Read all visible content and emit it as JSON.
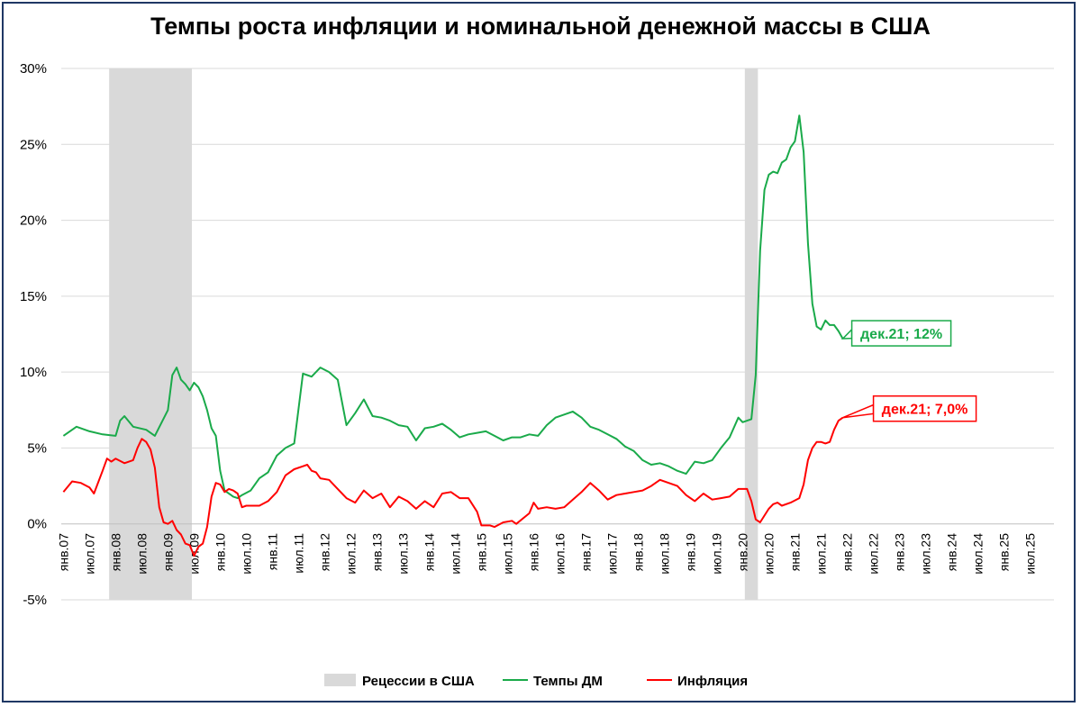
{
  "chart_data": {
    "type": "line",
    "title": "Темпы роста инфляции и номинальной денежной массы в США",
    "y_ticks": [
      "30%",
      "25%",
      "20%",
      "15%",
      "10%",
      "5%",
      "0%",
      "-5%"
    ],
    "ylim": [
      -5,
      30
    ],
    "grid": true,
    "x_start": "янв.07",
    "x_end": "дек.25",
    "x_tick_labels": [
      "янв.07",
      "июл.07",
      "янв.08",
      "июл.08",
      "янв.09",
      "июл.09",
      "янв.10",
      "июл.10",
      "янв.11",
      "июл.11",
      "янв.12",
      "июл.12",
      "янв.13",
      "июл.13",
      "янв.14",
      "июл.14",
      "янв.15",
      "июл.15",
      "янв.16",
      "июл.16",
      "янв.17",
      "июл.17",
      "янв.18",
      "июл.18",
      "янв.19",
      "июл.19",
      "янв.20",
      "июл.20",
      "янв.21",
      "июл.21",
      "янв.22",
      "июл.22",
      "янв.23",
      "июл.23",
      "янв.24",
      "июл.24",
      "янв.25",
      "июл.25"
    ],
    "recessions": [
      {
        "start": "дек.07",
        "end": "июн.09"
      },
      {
        "start": "фев.20",
        "end": "апр.20"
      }
    ],
    "series": [
      {
        "name": "Темпы ДМ",
        "color": "#1aaa4a",
        "points": [
          [
            "янв.07",
            5.8
          ],
          [
            "апр.07",
            6.4
          ],
          [
            "июл.07",
            6.1
          ],
          [
            "окт.07",
            5.9
          ],
          [
            "янв.08",
            5.8
          ],
          [
            "фев.08",
            6.8
          ],
          [
            "мар.08",
            7.1
          ],
          [
            "май.08",
            6.4
          ],
          [
            "авг.08",
            6.2
          ],
          [
            "окт.08",
            5.8
          ],
          [
            "янв.09",
            7.5
          ],
          [
            "фев.09",
            9.8
          ],
          [
            "мар.09",
            10.3
          ],
          [
            "апр.09",
            9.5
          ],
          [
            "май.09",
            9.2
          ],
          [
            "июн.09",
            8.8
          ],
          [
            "июл.09",
            9.3
          ],
          [
            "авг.09",
            9.0
          ],
          [
            "сен.09",
            8.4
          ],
          [
            "окт.09",
            7.5
          ],
          [
            "ноя.09",
            6.3
          ],
          [
            "дек.09",
            5.8
          ],
          [
            "янв.10",
            3.5
          ],
          [
            "фев.10",
            2.2
          ],
          [
            "мар.10",
            2.0
          ],
          [
            "апр.10",
            1.8
          ],
          [
            "май.10",
            1.7
          ],
          [
            "июн.10",
            1.9
          ],
          [
            "авг.10",
            2.2
          ],
          [
            "окт.10",
            3.0
          ],
          [
            "дек.10",
            3.4
          ],
          [
            "фев.11",
            4.5
          ],
          [
            "апр.11",
            5.0
          ],
          [
            "июн.11",
            5.3
          ],
          [
            "авг.11",
            9.9
          ],
          [
            "сен.11",
            9.8
          ],
          [
            "окт.11",
            9.7
          ],
          [
            "дек.11",
            10.3
          ],
          [
            "фев.12",
            10.0
          ],
          [
            "апр.12",
            9.5
          ],
          [
            "июн.12",
            6.5
          ],
          [
            "авг.12",
            7.3
          ],
          [
            "окт.12",
            8.2
          ],
          [
            "дек.12",
            7.1
          ],
          [
            "фев.13",
            7.0
          ],
          [
            "апр.13",
            6.8
          ],
          [
            "июн.13",
            6.5
          ],
          [
            "авг.13",
            6.4
          ],
          [
            "окт.13",
            5.5
          ],
          [
            "дек.13",
            6.3
          ],
          [
            "фев.14",
            6.4
          ],
          [
            "апр.14",
            6.6
          ],
          [
            "июн.14",
            6.2
          ],
          [
            "авг.14",
            5.7
          ],
          [
            "окт.14",
            5.9
          ],
          [
            "дек.14",
            6.0
          ],
          [
            "фев.15",
            6.1
          ],
          [
            "апр.15",
            5.8
          ],
          [
            "июн.15",
            5.5
          ],
          [
            "авг.15",
            5.7
          ],
          [
            "окт.15",
            5.7
          ],
          [
            "дек.15",
            5.9
          ],
          [
            "фев.16",
            5.8
          ],
          [
            "апр.16",
            6.5
          ],
          [
            "июн.16",
            7.0
          ],
          [
            "авг.16",
            7.2
          ],
          [
            "окт.16",
            7.4
          ],
          [
            "дек.16",
            7.0
          ],
          [
            "фев.17",
            6.4
          ],
          [
            "апр.17",
            6.2
          ],
          [
            "июн.17",
            5.9
          ],
          [
            "авг.17",
            5.6
          ],
          [
            "окт.17",
            5.1
          ],
          [
            "дек.17",
            4.8
          ],
          [
            "фев.18",
            4.2
          ],
          [
            "апр.18",
            3.9
          ],
          [
            "июн.18",
            4.0
          ],
          [
            "авг.18",
            3.8
          ],
          [
            "окт.18",
            3.5
          ],
          [
            "дек.18",
            3.3
          ],
          [
            "фев.19",
            4.1
          ],
          [
            "апр.19",
            4.0
          ],
          [
            "июн.19",
            4.2
          ],
          [
            "авг.19",
            5.0
          ],
          [
            "окт.19",
            5.7
          ],
          [
            "дек.19",
            7.0
          ],
          [
            "янв.20",
            6.7
          ],
          [
            "фев.20",
            6.8
          ],
          [
            "мар.20",
            6.9
          ],
          [
            "апр.20",
            9.8
          ],
          [
            "май.20",
            18.0
          ],
          [
            "июн.20",
            22.0
          ],
          [
            "июл.20",
            23.0
          ],
          [
            "авг.20",
            23.2
          ],
          [
            "сен.20",
            23.1
          ],
          [
            "окт.20",
            23.8
          ],
          [
            "ноя.20",
            24.0
          ],
          [
            "дек.20",
            24.8
          ],
          [
            "янв.21",
            25.2
          ],
          [
            "фев.21",
            26.9
          ],
          [
            "мар.21",
            24.5
          ],
          [
            "апр.21",
            18.5
          ],
          [
            "май.21",
            14.5
          ],
          [
            "июн.21",
            13.0
          ],
          [
            "июл.21",
            12.8
          ],
          [
            "авг.21",
            13.4
          ],
          [
            "сен.21",
            13.1
          ],
          [
            "окт.21",
            13.1
          ],
          [
            "ноя.21",
            12.7
          ],
          [
            "дек.21",
            12.2
          ]
        ]
      },
      {
        "name": "Инфляция",
        "color": "#ff0000",
        "points": [
          [
            "янв.07",
            2.1
          ],
          [
            "мар.07",
            2.8
          ],
          [
            "май.07",
            2.7
          ],
          [
            "июл.07",
            2.4
          ],
          [
            "авг.07",
            2.0
          ],
          [
            "окт.07",
            3.5
          ],
          [
            "ноя.07",
            4.3
          ],
          [
            "дек.07",
            4.1
          ],
          [
            "янв.08",
            4.3
          ],
          [
            "мар.08",
            4.0
          ],
          [
            "май.08",
            4.2
          ],
          [
            "июн.08",
            5.0
          ],
          [
            "июл.08",
            5.6
          ],
          [
            "авг.08",
            5.4
          ],
          [
            "сен.08",
            4.9
          ],
          [
            "окт.08",
            3.7
          ],
          [
            "ноя.08",
            1.1
          ],
          [
            "дек.08",
            0.1
          ],
          [
            "янв.09",
            0.0
          ],
          [
            "фев.09",
            0.2
          ],
          [
            "мар.09",
            -0.4
          ],
          [
            "апр.09",
            -0.7
          ],
          [
            "май.09",
            -1.3
          ],
          [
            "июн.09",
            -1.4
          ],
          [
            "июл.09",
            -2.1
          ],
          [
            "авг.09",
            -1.5
          ],
          [
            "сен.09",
            -1.3
          ],
          [
            "окт.09",
            -0.2
          ],
          [
            "ноя.09",
            1.8
          ],
          [
            "дек.09",
            2.7
          ],
          [
            "янв.10",
            2.6
          ],
          [
            "фев.10",
            2.1
          ],
          [
            "мар.10",
            2.3
          ],
          [
            "апр.10",
            2.2
          ],
          [
            "май.10",
            2.0
          ],
          [
            "июн.10",
            1.1
          ],
          [
            "июл.10",
            1.2
          ],
          [
            "окт.10",
            1.2
          ],
          [
            "дек.10",
            1.5
          ],
          [
            "фев.11",
            2.1
          ],
          [
            "апр.11",
            3.2
          ],
          [
            "июн.11",
            3.6
          ],
          [
            "авг.11",
            3.8
          ],
          [
            "сен.11",
            3.9
          ],
          [
            "окт.11",
            3.5
          ],
          [
            "ноя.11",
            3.4
          ],
          [
            "дек.11",
            3.0
          ],
          [
            "фев.12",
            2.9
          ],
          [
            "апр.12",
            2.3
          ],
          [
            "июн.12",
            1.7
          ],
          [
            "авг.12",
            1.4
          ],
          [
            "окт.12",
            2.2
          ],
          [
            "дек.12",
            1.7
          ],
          [
            "фев.13",
            2.0
          ],
          [
            "апр.13",
            1.1
          ],
          [
            "июн.13",
            1.8
          ],
          [
            "авг.13",
            1.5
          ],
          [
            "окт.13",
            1.0
          ],
          [
            "дек.13",
            1.5
          ],
          [
            "фев.14",
            1.1
          ],
          [
            "апр.14",
            2.0
          ],
          [
            "июн.14",
            2.1
          ],
          [
            "авг.14",
            1.7
          ],
          [
            "окт.14",
            1.7
          ],
          [
            "дек.14",
            0.8
          ],
          [
            "янв.15",
            -0.1
          ],
          [
            "мар.15",
            -0.1
          ],
          [
            "апр.15",
            -0.2
          ],
          [
            "июн.15",
            0.1
          ],
          [
            "авг.15",
            0.2
          ],
          [
            "сен.15",
            0.0
          ],
          [
            "дек.15",
            0.7
          ],
          [
            "янв.16",
            1.4
          ],
          [
            "фев.16",
            1.0
          ],
          [
            "апр.16",
            1.1
          ],
          [
            "июн.16",
            1.0
          ],
          [
            "авг.16",
            1.1
          ],
          [
            "окт.16",
            1.6
          ],
          [
            "дек.16",
            2.1
          ],
          [
            "фев.17",
            2.7
          ],
          [
            "апр.17",
            2.2
          ],
          [
            "июн.17",
            1.6
          ],
          [
            "авг.17",
            1.9
          ],
          [
            "окт.17",
            2.0
          ],
          [
            "дек.17",
            2.1
          ],
          [
            "фев.18",
            2.2
          ],
          [
            "апр.18",
            2.5
          ],
          [
            "июн.18",
            2.9
          ],
          [
            "авг.18",
            2.7
          ],
          [
            "окт.18",
            2.5
          ],
          [
            "дек.18",
            1.9
          ],
          [
            "фев.19",
            1.5
          ],
          [
            "апр.19",
            2.0
          ],
          [
            "июн.19",
            1.6
          ],
          [
            "авг.19",
            1.7
          ],
          [
            "окт.19",
            1.8
          ],
          [
            "дек.19",
            2.3
          ],
          [
            "фев.20",
            2.3
          ],
          [
            "мар.20",
            1.5
          ],
          [
            "апр.20",
            0.3
          ],
          [
            "май.20",
            0.1
          ],
          [
            "июл.20",
            1.0
          ],
          [
            "авг.20",
            1.3
          ],
          [
            "сен.20",
            1.4
          ],
          [
            "окт.20",
            1.2
          ],
          [
            "дек.20",
            1.4
          ],
          [
            "фев.21",
            1.7
          ],
          [
            "мар.21",
            2.6
          ],
          [
            "апр.21",
            4.2
          ],
          [
            "май.21",
            5.0
          ],
          [
            "июн.21",
            5.4
          ],
          [
            "июл.21",
            5.4
          ],
          [
            "авг.21",
            5.3
          ],
          [
            "сен.21",
            5.4
          ],
          [
            "окт.21",
            6.2
          ],
          [
            "ноя.21",
            6.8
          ],
          [
            "дек.21",
            7.0
          ]
        ]
      }
    ],
    "annotations": [
      {
        "series": "Темпы ДМ",
        "text": "дек.21; 12%",
        "color": "#1aaa4a"
      },
      {
        "series": "Инфляция",
        "text": "дек.21; 7,0%",
        "color": "#ff0000"
      }
    ],
    "legend": {
      "position": "bottom",
      "items": [
        {
          "label": "Рецессии в США",
          "color": "#d9d9d9",
          "kind": "area"
        },
        {
          "label": "Темпы ДМ",
          "color": "#1aaa4a",
          "kind": "line"
        },
        {
          "label": "Инфляция",
          "color": "#ff0000",
          "kind": "line"
        }
      ]
    }
  }
}
